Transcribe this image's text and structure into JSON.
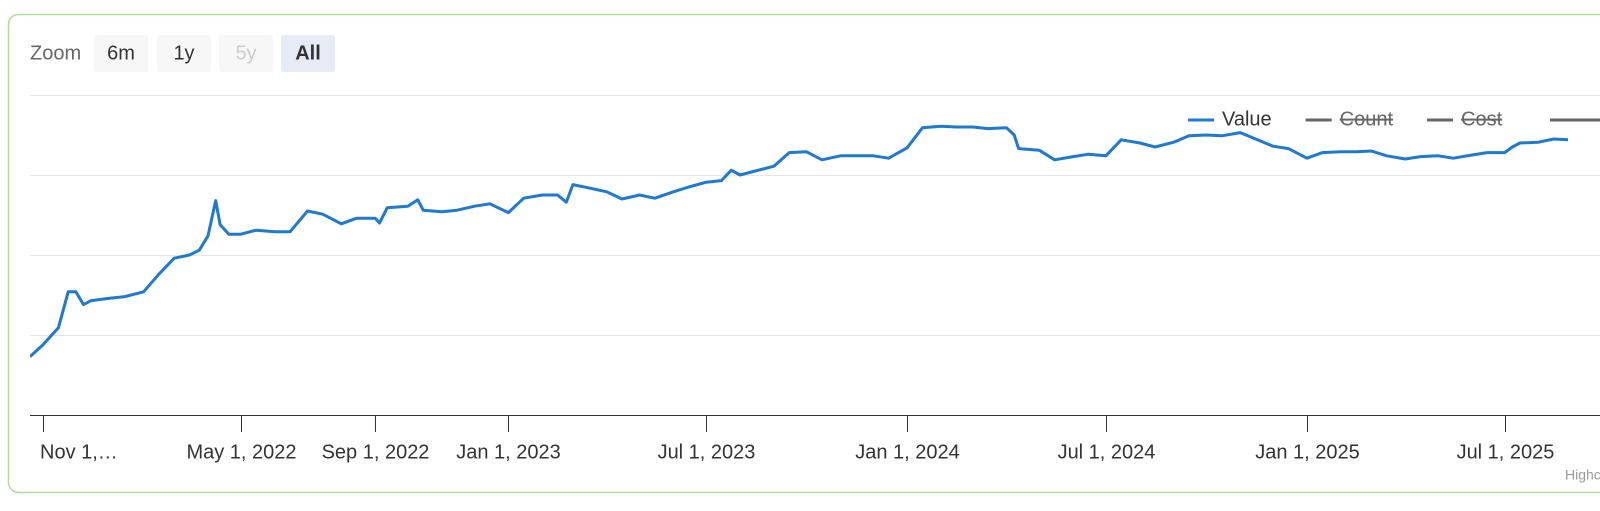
{
  "chart_data": {
    "type": "line",
    "range_selector": {
      "label": "Zoom",
      "buttons": [
        {
          "text": "6m",
          "state": "normal"
        },
        {
          "text": "1y",
          "state": "normal"
        },
        {
          "text": "5y",
          "state": "disabled"
        },
        {
          "text": "All",
          "state": "selected"
        }
      ]
    },
    "x": [
      "2021-10-20",
      "2021-11-01",
      "2021-11-15",
      "2021-11-24",
      "2021-12-01",
      "2021-12-08",
      "2021-12-15",
      "2022-01-01",
      "2022-01-15",
      "2022-02-01",
      "2022-02-15",
      "2022-03-01",
      "2022-03-15",
      "2022-03-24",
      "2022-04-01",
      "2022-04-08",
      "2022-04-12",
      "2022-04-20",
      "2022-05-01",
      "2022-05-15",
      "2022-06-01",
      "2022-06-15",
      "2022-07-01",
      "2022-07-15",
      "2022-08-01",
      "2022-08-15",
      "2022-09-01",
      "2022-09-05",
      "2022-09-12",
      "2022-10-01",
      "2022-10-10",
      "2022-10-15",
      "2022-11-01",
      "2022-11-15",
      "2022-12-01",
      "2022-12-15",
      "2023-01-01",
      "2023-01-15",
      "2023-02-01",
      "2023-02-15",
      "2023-02-23",
      "2023-03-01",
      "2023-03-15",
      "2023-04-01",
      "2023-04-15",
      "2023-05-01",
      "2023-05-15",
      "2023-06-01",
      "2023-06-15",
      "2023-07-01",
      "2023-07-15",
      "2023-07-24",
      "2023-08-01",
      "2023-08-15",
      "2023-09-01",
      "2023-09-15",
      "2023-10-01",
      "2023-10-15",
      "2023-11-01",
      "2023-11-15",
      "2023-12-01",
      "2023-12-15",
      "2024-01-01",
      "2024-01-15",
      "2024-02-01",
      "2024-02-15",
      "2024-03-01",
      "2024-03-15",
      "2024-04-01",
      "2024-04-08",
      "2024-04-12",
      "2024-05-01",
      "2024-05-15",
      "2024-06-01",
      "2024-06-15",
      "2024-07-01",
      "2024-07-15",
      "2024-08-01",
      "2024-08-15",
      "2024-09-01",
      "2024-09-15",
      "2024-10-01",
      "2024-10-15",
      "2024-11-01",
      "2024-11-15",
      "2024-12-01",
      "2024-12-15",
      "2025-01-01",
      "2025-01-15",
      "2025-02-01",
      "2025-02-15",
      "2025-03-01",
      "2025-03-15",
      "2025-04-01",
      "2025-04-15",
      "2025-05-01",
      "2025-05-15",
      "2025-06-01",
      "2025-06-15",
      "2025-07-01",
      "2025-07-08",
      "2025-07-15",
      "2025-08-01",
      "2025-08-15",
      "2025-08-28"
    ],
    "series": [
      {
        "name": "Value",
        "color": "#1f78d1",
        "values": [
          0.73,
          0.88,
          1.09,
          1.54,
          1.54,
          1.38,
          1.43,
          1.46,
          1.48,
          1.54,
          1.76,
          1.96,
          2.0,
          2.06,
          2.24,
          2.68,
          2.38,
          2.26,
          2.26,
          2.31,
          2.29,
          2.29,
          2.55,
          2.51,
          2.39,
          2.46,
          2.46,
          2.4,
          2.59,
          2.61,
          2.69,
          2.56,
          2.54,
          2.56,
          2.61,
          2.64,
          2.53,
          2.71,
          2.75,
          2.75,
          2.66,
          2.88,
          2.84,
          2.79,
          2.7,
          2.75,
          2.71,
          2.79,
          2.85,
          2.91,
          2.93,
          3.06,
          3.0,
          3.05,
          3.11,
          3.28,
          3.29,
          3.19,
          3.24,
          3.24,
          3.24,
          3.21,
          3.34,
          3.59,
          3.61,
          3.6,
          3.6,
          3.58,
          3.59,
          3.5,
          3.33,
          3.31,
          3.19,
          3.23,
          3.26,
          3.24,
          3.44,
          3.4,
          3.35,
          3.41,
          3.49,
          3.5,
          3.49,
          3.53,
          3.45,
          3.36,
          3.33,
          3.21,
          3.28,
          3.29,
          3.29,
          3.3,
          3.24,
          3.2,
          3.23,
          3.24,
          3.21,
          3.25,
          3.28,
          3.28,
          3.35,
          3.4,
          3.41,
          3.45,
          3.44
        ]
      }
    ],
    "hidden_series": [
      {
        "name": "Count",
        "color": "#666666"
      },
      {
        "name": "Cost",
        "color": "#666666"
      }
    ],
    "xlim": [
      "2021-10-20",
      "2025-08-28"
    ],
    "xticks": [
      {
        "value": "2021-11-01",
        "label": "Nov 1,…"
      },
      {
        "value": "2022-05-01",
        "label": "May 1, 2022"
      },
      {
        "value": "2022-09-01",
        "label": "Sep 1, 2022"
      },
      {
        "value": "2023-01-01",
        "label": "Jan 1, 2023"
      },
      {
        "value": "2023-07-01",
        "label": "Jul 1, 2023"
      },
      {
        "value": "2024-01-01",
        "label": "Jan 1, 2024"
      },
      {
        "value": "2024-07-01",
        "label": "Jul 1, 2024"
      },
      {
        "value": "2025-01-01",
        "label": "Jan 1, 2025"
      },
      {
        "value": "2025-07-01",
        "label": "Jul 1, 2025"
      }
    ],
    "ylim": [
      0,
      4
    ],
    "yticks": [
      0,
      1,
      2,
      3,
      4
    ],
    "grid": true,
    "legend_position": "top-right",
    "credits": "Highcharts.com"
  }
}
